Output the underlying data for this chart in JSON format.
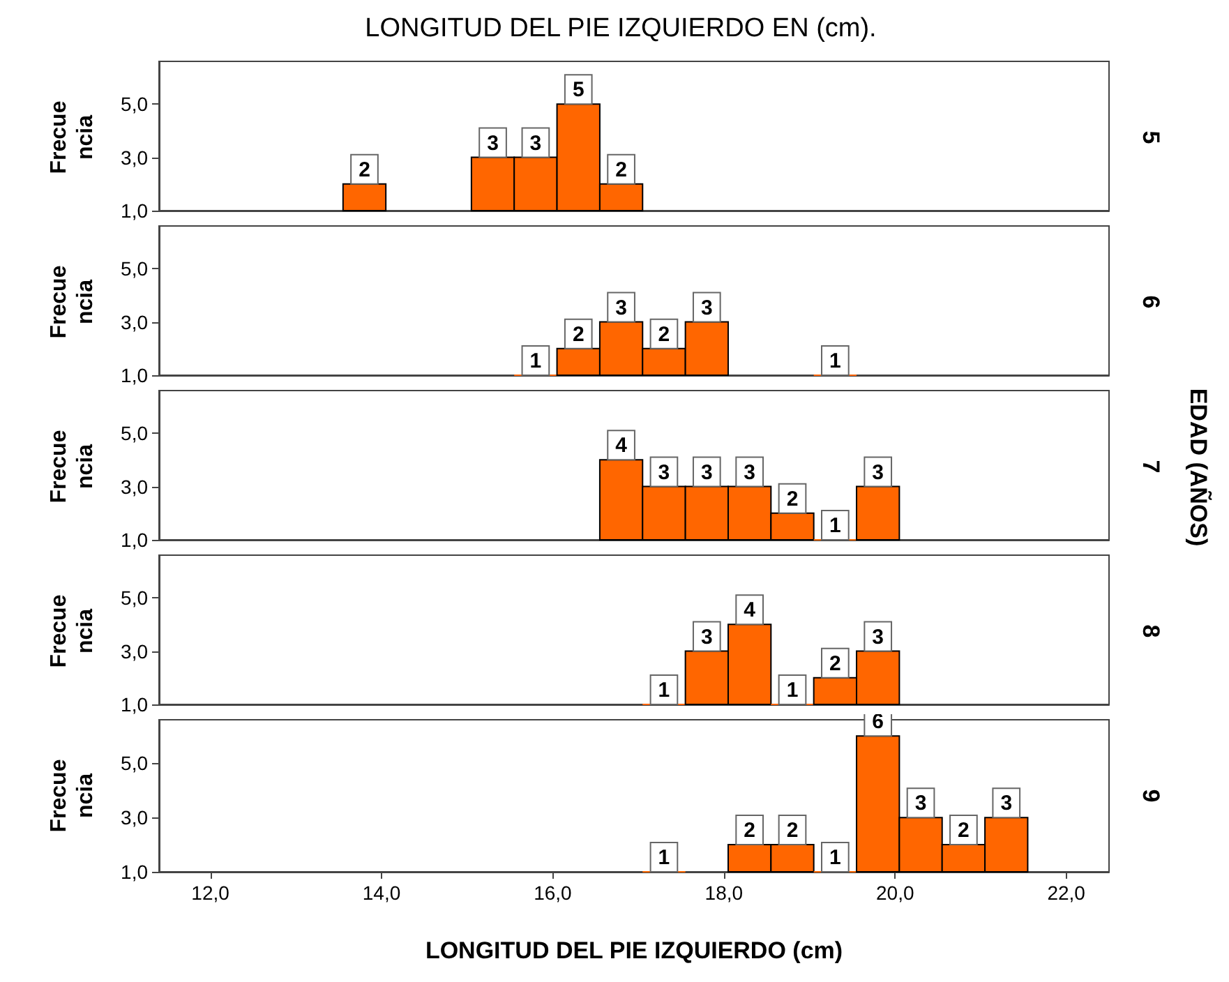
{
  "chart_data": [
    {
      "type": "histogram",
      "title": "LONGITUD DEL PIE IZQUIERDO EN (cm).",
      "ylabel": "Frecuencia",
      "y2label": "5",
      "bins": [
        13.55,
        14.05,
        14.55,
        15.05,
        15.55,
        16.05,
        16.55,
        17.05
      ],
      "values": [
        2,
        null,
        null,
        3,
        3,
        5,
        2
      ],
      "color": "#ff6600",
      "xlim": [
        11.4,
        22.5
      ],
      "ylim": [
        1,
        6.6
      ],
      "yticks": [
        {
          "value": 1,
          "label": "1,0"
        },
        {
          "value": 3,
          "label": "3,0"
        },
        {
          "value": 5,
          "label": "5,0"
        }
      ],
      "tick_labels": "y",
      "data_labels": true
    },
    {
      "type": "histogram",
      "ylabel": "Frecuencia",
      "y2label": "6",
      "bins": [
        15.55,
        16.05,
        16.55,
        17.05,
        17.55,
        18.05,
        18.55,
        19.05,
        19.55
      ],
      "values": [
        1,
        2,
        3,
        2,
        3,
        null,
        null,
        1
      ],
      "color": "#ff6600",
      "xlim": [
        11.4,
        22.5
      ],
      "ylim": [
        1,
        6.6
      ],
      "yticks": [
        {
          "value": 1,
          "label": "1,0"
        },
        {
          "value": 3,
          "label": "3,0"
        },
        {
          "value": 5,
          "label": "5,0"
        }
      ],
      "tick_labels": "y",
      "data_labels": true
    },
    {
      "type": "histogram",
      "ylabel": "Frecuencia",
      "y2label": "7",
      "annotations": [
        "EDAD (AÑOS)"
      ],
      "bins": [
        16.55,
        17.05,
        17.55,
        18.05,
        18.55,
        19.05,
        19.55,
        20.05
      ],
      "values": [
        4,
        3,
        3,
        3,
        2,
        1,
        3
      ],
      "color": "#ff6600",
      "xlim": [
        11.4,
        22.5
      ],
      "ylim": [
        1,
        6.6
      ],
      "yticks": [
        {
          "value": 1,
          "label": "1,0"
        },
        {
          "value": 3,
          "label": "3,0"
        },
        {
          "value": 5,
          "label": "5,0"
        }
      ],
      "tick_labels": "y",
      "data_labels": true
    },
    {
      "type": "histogram",
      "ylabel": "Frecuencia",
      "y2label": "8",
      "bins": [
        17.05,
        17.55,
        18.05,
        18.55,
        19.05,
        19.55,
        20.05
      ],
      "values": [
        1,
        3,
        4,
        1,
        2,
        3
      ],
      "color": "#ff6600",
      "xlim": [
        11.4,
        22.5
      ],
      "ylim": [
        1,
        6.6
      ],
      "yticks": [
        {
          "value": 1,
          "label": "1,0"
        },
        {
          "value": 3,
          "label": "3,0"
        },
        {
          "value": 5,
          "label": "5,0"
        }
      ],
      "tick_labels": "y",
      "data_labels": true
    },
    {
      "type": "histogram",
      "ylabel": "Frecuencia",
      "y2label": "9",
      "xlabel": "LONGITUD DEL PIE IZQUIERDO (cm)",
      "bins": [
        17.05,
        17.55,
        18.05,
        18.55,
        19.05,
        19.55,
        20.05,
        20.55,
        21.05,
        21.55
      ],
      "values": [
        1,
        null,
        2,
        2,
        1,
        6,
        3,
        2,
        3
      ],
      "color": "#ff6600",
      "xlim": [
        11.4,
        22.5
      ],
      "ylim": [
        1,
        6.6
      ],
      "yticks": [
        {
          "value": 1,
          "label": "1,0"
        },
        {
          "value": 3,
          "label": "3,0"
        },
        {
          "value": 5,
          "label": "5,0"
        }
      ],
      "xticks": [
        {
          "value": 12,
          "label": "12,0"
        },
        {
          "value": 14,
          "label": "14,0"
        },
        {
          "value": 16,
          "label": "16,0"
        },
        {
          "value": 18,
          "label": "18,0"
        },
        {
          "value": 20,
          "label": "20,0"
        },
        {
          "value": 22,
          "label": "22,0"
        }
      ],
      "data_labels": true
    }
  ]
}
